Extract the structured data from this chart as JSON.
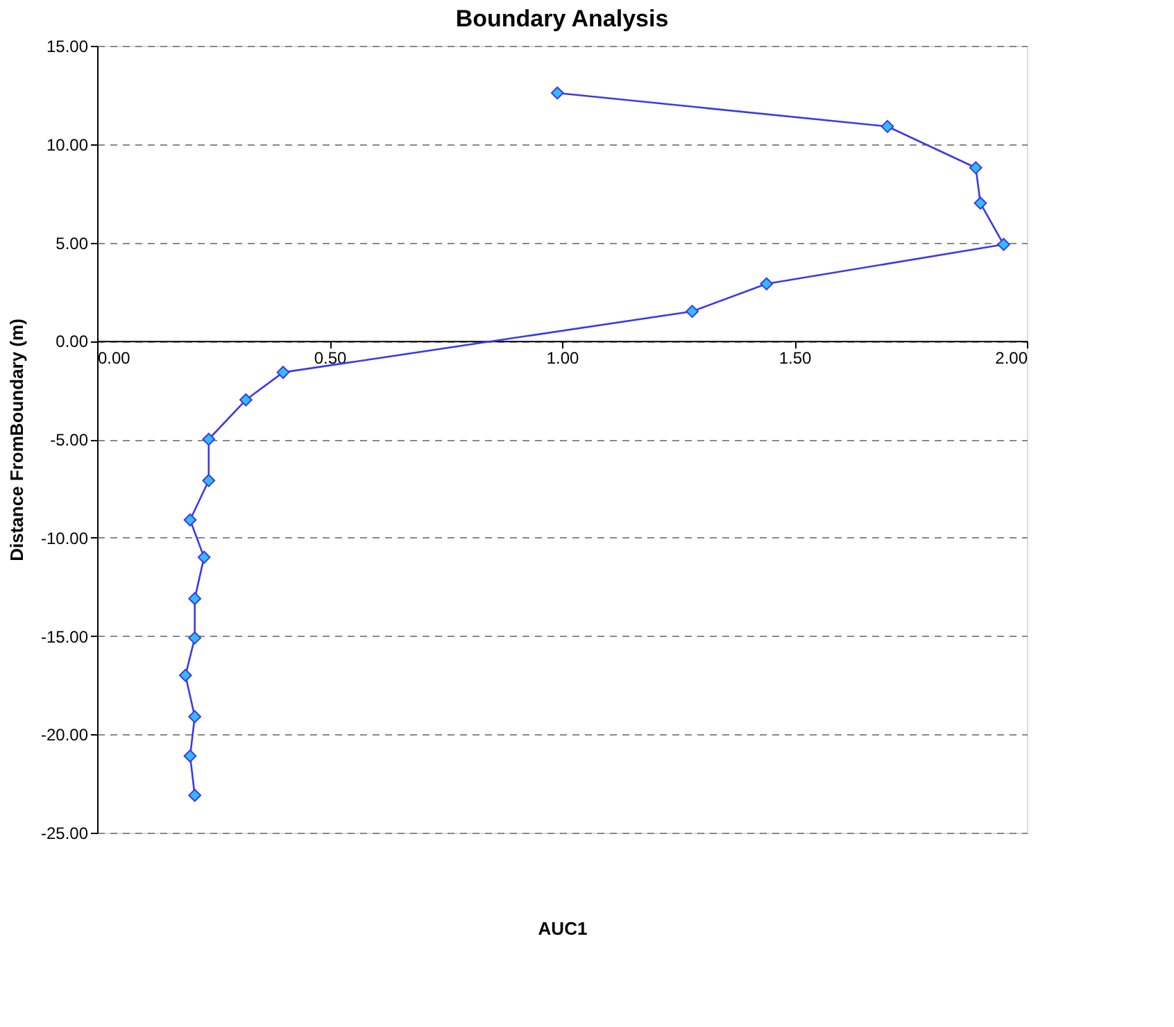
{
  "chart_data": {
    "type": "line",
    "title": "Boundary Analysis",
    "xlabel": "AUC1",
    "ylabel": "Distance FromBoundary (m)",
    "xlim": [
      0,
      2
    ],
    "ylim": [
      -25,
      15
    ],
    "xticks": [
      {
        "value": 0,
        "label": "0.00"
      },
      {
        "value": 0.5,
        "label": "0.50"
      },
      {
        "value": 1,
        "label": "1.00"
      },
      {
        "value": 1.5,
        "label": "1.50"
      },
      {
        "value": 2,
        "label": "2.00"
      }
    ],
    "yticks": [
      {
        "value": -25,
        "label": "-25.00"
      },
      {
        "value": -20,
        "label": "-20.00"
      },
      {
        "value": -15,
        "label": "-15.00"
      },
      {
        "value": -10,
        "label": "-10.00"
      },
      {
        "value": -5,
        "label": "-5.00"
      },
      {
        "value": 0,
        "label": "0.00"
      },
      {
        "value": 5,
        "label": "5.00"
      },
      {
        "value": 10,
        "label": "10.00"
      },
      {
        "value": 15,
        "label": "15.00"
      }
    ],
    "grid": "y",
    "marker": "diamond",
    "line_style": "solid",
    "series": [
      {
        "color": "#3a3ae8",
        "x": [
          0.99,
          1.7,
          1.89,
          1.9,
          1.95,
          1.44,
          1.28,
          0.4,
          0.32,
          0.24,
          0.24,
          0.2,
          0.23,
          0.21,
          0.21,
          0.19,
          0.21,
          0.2,
          0.21
        ],
        "values": [
          12.6,
          10.9,
          8.8,
          7.0,
          4.9,
          2.9,
          1.5,
          -1.6,
          -3.0,
          -5.0,
          -7.1,
          -9.1,
          -11.0,
          -13.1,
          -15.1,
          -17.0,
          -19.1,
          -21.1,
          -23.1
        ]
      }
    ]
  }
}
